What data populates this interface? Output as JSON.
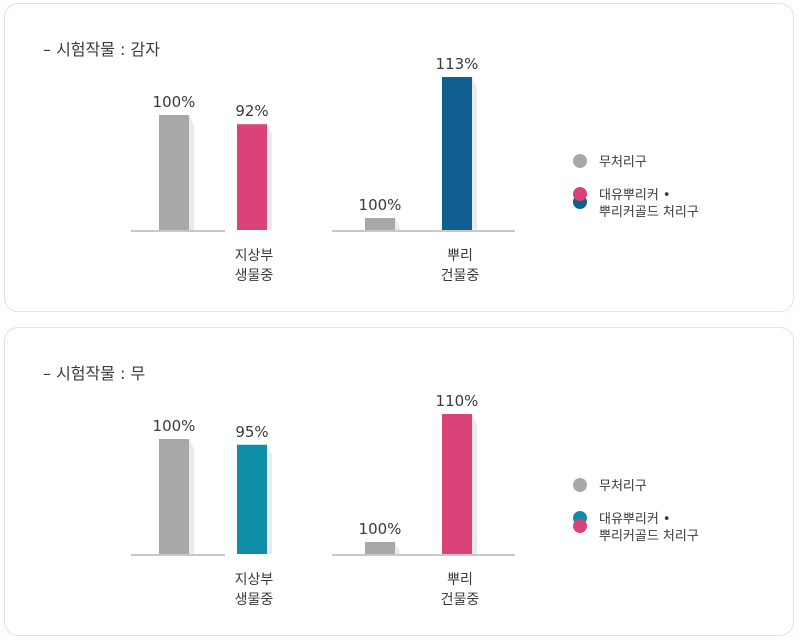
{
  "legend": {
    "untreated": "무처리구",
    "treated_line1": "대유뿌리커 •",
    "treated_line2": "뿌리커골드 처리구"
  },
  "colors": {
    "gray": "#a7a8aa",
    "pink": "#d9437a",
    "navy": "#0f5e8f",
    "teal": "#118ea7"
  },
  "chart_data": [
    {
      "type": "bar",
      "title": "– 시험작물 : 감자",
      "groups": [
        {
          "label": [
            "지상부",
            "생물중"
          ],
          "bars": [
            {
              "series": "무처리구",
              "value": 100,
              "label": "100%"
            },
            {
              "series": "대유뿌리커 • 뿌리커골드 처리구",
              "value": 92,
              "label": "92%"
            }
          ]
        },
        {
          "label": [
            "뿌리",
            "건물중"
          ],
          "bars": [
            {
              "series": "무처리구",
              "value": 100,
              "label": "100%"
            },
            {
              "series": "대유뿌리커 • 뿌리커골드 처리구",
              "value": 113,
              "label": "113%"
            }
          ]
        }
      ],
      "series_colors": {
        "group1": [
          "gray",
          "pink"
        ],
        "group2": [
          "gray",
          "navy"
        ]
      },
      "legend_colors": {
        "untreated": "gray",
        "treated_top": "pink",
        "treated_bottom": "navy"
      }
    },
    {
      "type": "bar",
      "title": "– 시험작물 : 무",
      "groups": [
        {
          "label": [
            "지상부",
            "생물중"
          ],
          "bars": [
            {
              "series": "무처리구",
              "value": 100,
              "label": "100%"
            },
            {
              "series": "대유뿌리커 • 뿌리커골드 처리구",
              "value": 95,
              "label": "95%"
            }
          ]
        },
        {
          "label": [
            "뿌리",
            "건물중"
          ],
          "bars": [
            {
              "series": "무처리구",
              "value": 100,
              "label": "100%"
            },
            {
              "series": "대유뿌리커 • 뿌리커골드 처리구",
              "value": 110,
              "label": "110%"
            }
          ]
        }
      ],
      "series_colors": {
        "group1": [
          "gray",
          "teal"
        ],
        "group2": [
          "gray",
          "pink"
        ]
      },
      "legend_colors": {
        "untreated": "gray",
        "treated_top": "teal",
        "treated_bottom": "pink"
      }
    }
  ]
}
